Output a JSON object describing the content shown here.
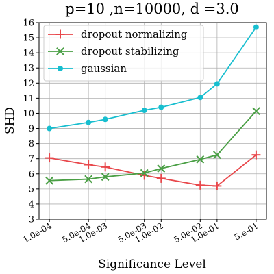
{
  "chart_data": {
    "type": "line",
    "title": "p=10 ,n=10000, d =3.0",
    "xlabel": "Significance Level",
    "ylabel": "SHD",
    "x_scale": "log",
    "xlim": [
      0.0001,
      0.5
    ],
    "ylim": [
      3,
      16
    ],
    "x_ticks": [
      {
        "value": 0.0001,
        "label": "1.0e-04"
      },
      {
        "value": 0.0005,
        "label": "5.0e-04"
      },
      {
        "value": 0.001,
        "label": "1.0e-03"
      },
      {
        "value": 0.005,
        "label": "5.0e-03"
      },
      {
        "value": 0.01,
        "label": "1.0e-02"
      },
      {
        "value": 0.05,
        "label": "5.0e-02"
      },
      {
        "value": 0.1,
        "label": "1.0e-01"
      },
      {
        "value": 0.5,
        "label": "5.e-01"
      }
    ],
    "y_ticks": [
      3,
      4,
      5,
      6,
      7,
      8,
      9,
      10,
      11,
      12,
      13,
      14,
      15,
      16
    ],
    "grid": true,
    "legend_position": "top-left",
    "x": [
      0.0001,
      0.0005,
      0.001,
      0.005,
      0.01,
      0.05,
      0.1,
      0.5
    ],
    "series": [
      {
        "name": "dropout normalizing",
        "color": "#e8474b",
        "marker": "plus",
        "values": [
          7.05,
          6.6,
          6.45,
          5.9,
          5.7,
          5.25,
          5.2,
          7.25
        ]
      },
      {
        "name": "dropout stabilizing",
        "color": "#4a9f45",
        "marker": "x",
        "values": [
          5.55,
          5.65,
          5.8,
          6.05,
          6.35,
          6.95,
          7.25,
          10.15
        ]
      },
      {
        "name": "gaussian",
        "color": "#17becf",
        "marker": "circle",
        "values": [
          9.0,
          9.4,
          9.6,
          10.2,
          10.4,
          11.05,
          11.95,
          15.7
        ]
      }
    ]
  }
}
